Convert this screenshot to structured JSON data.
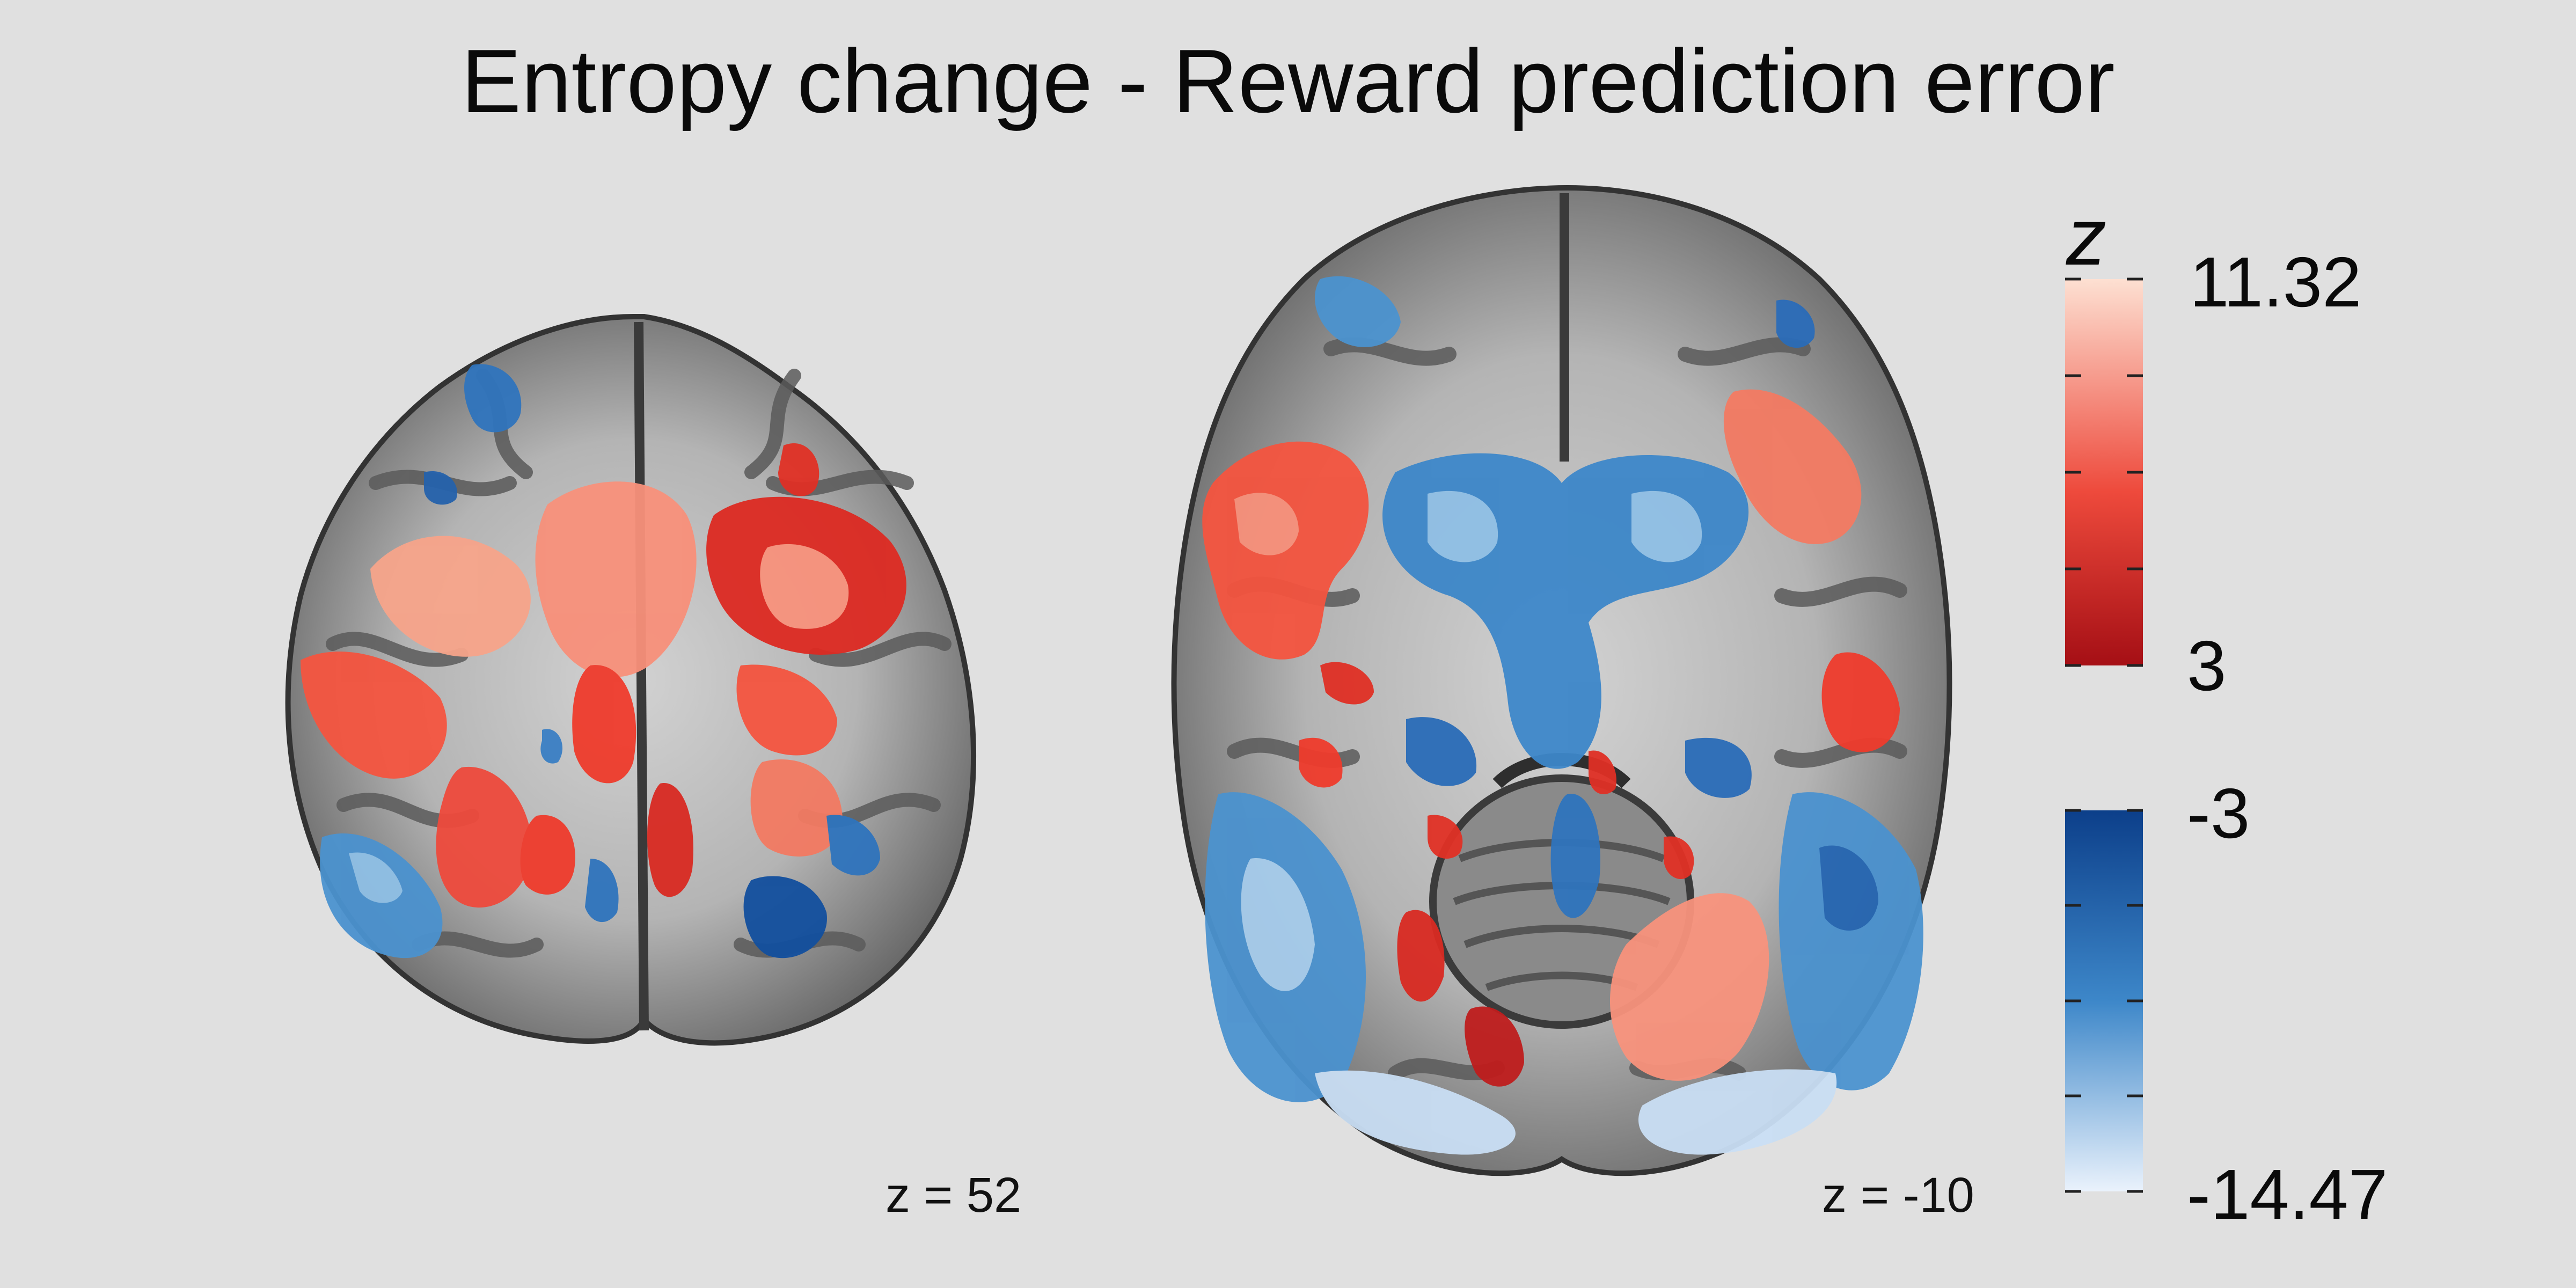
{
  "title": "Entropy change - Reward prediction error",
  "slices": [
    {
      "label": "z = 52"
    },
    {
      "label": "z = -10"
    }
  ],
  "colorbar": {
    "symbol": "z",
    "positive": {
      "max": "11.32",
      "min": "3"
    },
    "negative": {
      "max": "-3",
      "min": "-14.47"
    }
  },
  "colors": {
    "background": "#e0e0e0",
    "positive_low": "#a50f15",
    "positive_mid": "#ee4a3c",
    "positive_high": "#fde0d2",
    "negative_low": "#0c3f8a",
    "negative_mid": "#3d87c9",
    "negative_high": "#dbe9f8"
  }
}
